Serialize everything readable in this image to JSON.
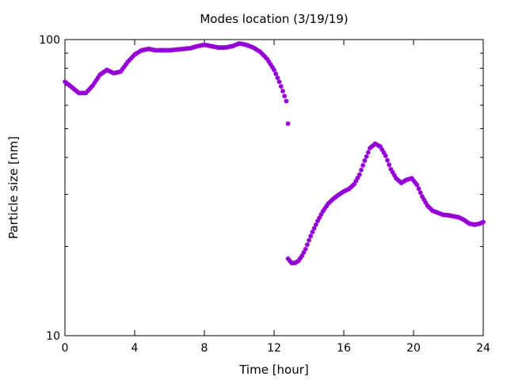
{
  "chart_data": {
    "type": "scatter",
    "title": "Modes location (3/19/19)",
    "xlabel": "Time [hour]",
    "ylabel": "Particle size [nm]",
    "xlim": [
      0,
      24
    ],
    "ylim": [
      10,
      100
    ],
    "y_scale": "log",
    "x_ticks": [
      0,
      4,
      8,
      12,
      16,
      20,
      24
    ],
    "x_tick_labels": [
      "0",
      "4",
      "8",
      "12",
      "16",
      "20",
      "24"
    ],
    "y_ticks": [
      10,
      100
    ],
    "y_tick_labels": [
      "10",
      "100"
    ],
    "y_minor_ticks": [
      20,
      30,
      40,
      50,
      60,
      70,
      80,
      90
    ],
    "grid": false,
    "marker": "star",
    "color": "#9400d3",
    "series": [
      {
        "points": [
          [
            0.0,
            72
          ],
          [
            0.4,
            69
          ],
          [
            0.8,
            66
          ],
          [
            1.2,
            66
          ],
          [
            1.6,
            70
          ],
          [
            2.0,
            76
          ],
          [
            2.4,
            79
          ],
          [
            2.8,
            77
          ],
          [
            3.2,
            78
          ],
          [
            3.6,
            84
          ],
          [
            4.0,
            89
          ],
          [
            4.4,
            92
          ],
          [
            4.8,
            93
          ],
          [
            5.2,
            92
          ],
          [
            5.6,
            92
          ],
          [
            6.0,
            92
          ],
          [
            6.4,
            92.5
          ],
          [
            6.8,
            93
          ],
          [
            7.2,
            93.5
          ],
          [
            7.6,
            95
          ],
          [
            8.0,
            96
          ],
          [
            8.4,
            95
          ],
          [
            8.8,
            94
          ],
          [
            9.2,
            94
          ],
          [
            9.6,
            95
          ],
          [
            10.0,
            97
          ],
          [
            10.4,
            96
          ],
          [
            10.8,
            94
          ],
          [
            11.2,
            91
          ],
          [
            11.6,
            86
          ],
          [
            12.0,
            79
          ],
          [
            12.3,
            72
          ],
          [
            12.5,
            67
          ],
          [
            12.7,
            62
          ],
          [
            12.8,
            52
          ],
          [
            12.8,
            18.2
          ],
          [
            13.0,
            17.6
          ],
          [
            13.2,
            17.6
          ],
          [
            13.4,
            17.9
          ],
          [
            13.6,
            18.6
          ],
          [
            13.8,
            19.6
          ],
          [
            14.0,
            21.0
          ],
          [
            14.2,
            22.4
          ],
          [
            14.5,
            24.4
          ],
          [
            14.8,
            26.3
          ],
          [
            15.1,
            27.9
          ],
          [
            15.4,
            29.0
          ],
          [
            15.7,
            29.9
          ],
          [
            16.0,
            30.7
          ],
          [
            16.3,
            31.3
          ],
          [
            16.6,
            32.5
          ],
          [
            16.9,
            35.0
          ],
          [
            17.2,
            39.0
          ],
          [
            17.5,
            43.0
          ],
          [
            17.8,
            44.5
          ],
          [
            18.1,
            43.5
          ],
          [
            18.4,
            40.5
          ],
          [
            18.7,
            36.5
          ],
          [
            19.0,
            34.0
          ],
          [
            19.3,
            32.8
          ],
          [
            19.6,
            33.6
          ],
          [
            19.9,
            34.0
          ],
          [
            20.2,
            32.3
          ],
          [
            20.5,
            29.5
          ],
          [
            20.8,
            27.5
          ],
          [
            21.1,
            26.4
          ],
          [
            21.4,
            26.0
          ],
          [
            21.7,
            25.6
          ],
          [
            22.0,
            25.5
          ],
          [
            22.3,
            25.3
          ],
          [
            22.6,
            25.1
          ],
          [
            22.9,
            24.6
          ],
          [
            23.2,
            23.9
          ],
          [
            23.5,
            23.7
          ],
          [
            23.8,
            23.9
          ],
          [
            24.0,
            24.2
          ]
        ]
      }
    ]
  }
}
